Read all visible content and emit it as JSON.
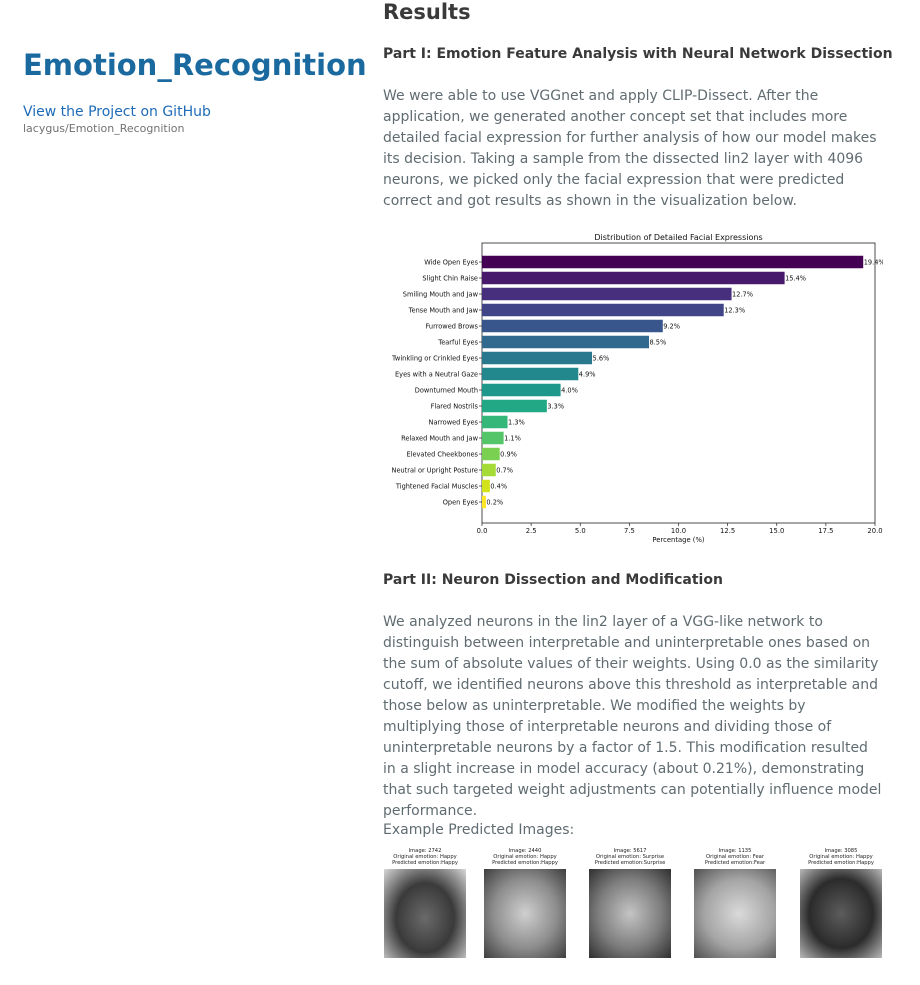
{
  "sidebar": {
    "title": "Emotion_Recognition",
    "github_link": "View the Project on GitHub",
    "repo": "lacygus/Emotion_Recognition"
  },
  "main": {
    "heading": "Results",
    "part1": {
      "heading": "Part I: Emotion Feature Analysis with Neural Network Dissection",
      "text": "We were able to use VGGnet and apply CLIP-Dissect. After the application, we generated another concept set that includes more detailed facial expression for further analysis of how our model makes its decision. Taking a sample from the dissected lin2 layer with 4096 neurons, we picked only the facial expression that were predicted correct and got results as shown in the visualization below."
    },
    "part2": {
      "heading": "Part II: Neuron Dissection and Modification",
      "text": "We analyzed neurons in the lin2 layer of a VGG-like network to distinguish between interpretable and uninterpretable ones based on the sum of absolute values of their weights. Using 0.0 as the similarity cutoff, we identified neurons above this threshold as interpretable and those below as uninterpretable. We modified the weights by multiplying those of interpretable neurons and dividing those of uninterpretable neurons by a factor of 1.5. This modification resulted in a slight increase in model accuracy (about 0.21%), demonstrating that such targeted weight adjustments can potentially influence model performance."
    },
    "examples_label": "Example Predicted Images:"
  },
  "examples": [
    {
      "image": "Image: 2742",
      "original": "Original emotion: Happy",
      "predicted": "Predicted emotion:Happy"
    },
    {
      "image": "Image: 2440",
      "original": "Original emotion: Happy",
      "predicted": "Predicted emotion:Happy"
    },
    {
      "image": "Image: 5617",
      "original": "Original emotion: Surprise",
      "predicted": "Predicted emotion:Surprise"
    },
    {
      "image": "Image: 1135",
      "original": "Original emotion: Fear",
      "predicted": "Predicted emotion:Fear"
    },
    {
      "image": "Image: 3085",
      "original": "Original emotion: Happy",
      "predicted": "Predicted emotion:Happy"
    }
  ],
  "chart_data": {
    "type": "bar",
    "orientation": "horizontal",
    "title": "Distribution of Detailed Facial Expressions",
    "xlabel": "Percentage (%)",
    "ylabel": "",
    "xlim": [
      0,
      20
    ],
    "xticks": [
      0.0,
      2.5,
      5.0,
      7.5,
      10.0,
      12.5,
      15.0,
      17.5,
      20.0
    ],
    "grid": false,
    "categories": [
      "Wide Open Eyes",
      "Slight Chin Raise",
      "Smiling Mouth and Jaw",
      "Tense Mouth and Jaw",
      "Furrowed Brows",
      "Tearful Eyes",
      "Twinkling or Crinkled Eyes",
      "Eyes with a Neutral Gaze",
      "Downturned Mouth",
      "Flared Nostrils",
      "Narrowed Eyes",
      "Relaxed Mouth and Jaw",
      "Elevated Cheekbones",
      "Neutral or Upright Posture",
      "Tightened Facial Muscles",
      "Open Eyes"
    ],
    "values": [
      19.4,
      15.4,
      12.7,
      12.3,
      9.2,
      8.5,
      5.6,
      4.9,
      4.0,
      3.3,
      1.3,
      1.1,
      0.9,
      0.7,
      0.4,
      0.2
    ],
    "labels": [
      "19.4%",
      "15.4%",
      "12.7%",
      "12.3%",
      "9.2%",
      "8.5%",
      "5.6%",
      "4.9%",
      "4.0%",
      "3.3%",
      "1.3%",
      "1.1%",
      "0.9%",
      "0.7%",
      "0.4%",
      "0.2%"
    ],
    "colors": [
      "#440154",
      "#481a6c",
      "#472f7d",
      "#414487",
      "#39568c",
      "#31688e",
      "#2a788e",
      "#23888e",
      "#1f988b",
      "#22a884",
      "#35b779",
      "#54c568",
      "#7ad151",
      "#a5db36",
      "#d2e21b",
      "#fde725"
    ]
  }
}
